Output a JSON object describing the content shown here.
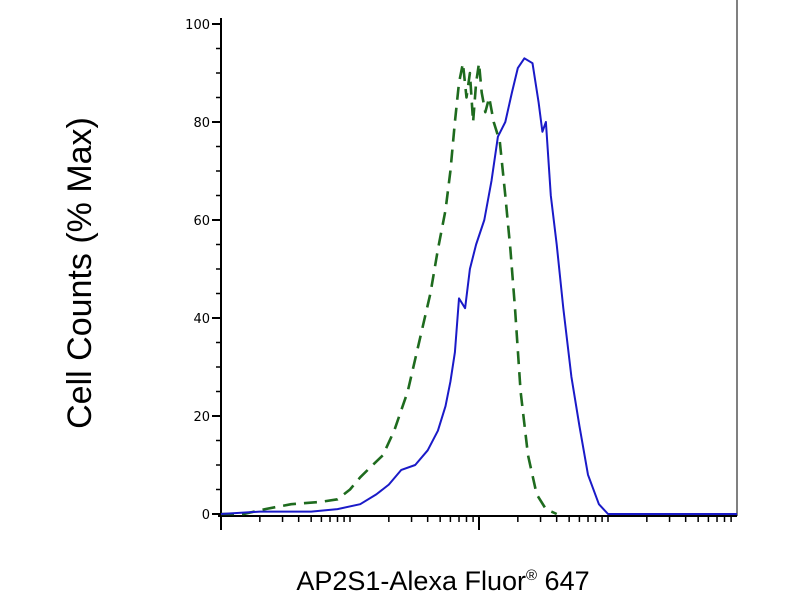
{
  "chart_data": {
    "type": "line",
    "title": "",
    "ylabel": "Cell Counts (% Max)",
    "xlabel": {
      "main": "AP2S1-Alexa Fluor",
      "superscript": "®",
      "suffix": " 647"
    },
    "xscale": "log",
    "xlim": [
      1,
      10000
    ],
    "ylim": [
      0,
      100
    ],
    "y_ticks": [
      0,
      20,
      40,
      60,
      80,
      100
    ],
    "y_tick_labels": [
      "0",
      "20",
      "40",
      "60",
      "80",
      "100"
    ],
    "x_major_ticks": [
      1,
      100,
      10000
    ],
    "grid": false,
    "legend": "none",
    "series": [
      {
        "style": "dashed",
        "color": "#1e6b1e",
        "x": [
          1,
          1.5,
          2.2,
          3.5,
          6,
          8,
          10,
          12,
          15,
          18,
          22,
          28,
          35,
          42,
          48,
          55,
          60,
          65,
          70,
          75,
          80,
          85,
          90,
          95,
          100,
          105,
          112,
          120,
          130,
          145,
          160,
          175,
          190,
          210,
          240,
          280,
          330,
          400
        ],
        "y": [
          0,
          0,
          1,
          2,
          2.5,
          3,
          5,
          7.5,
          10,
          12,
          17,
          25,
          36,
          45,
          54,
          62,
          70,
          80,
          88,
          92,
          85,
          90,
          80,
          88,
          92,
          86,
          82,
          85,
          80,
          76,
          65,
          54,
          42,
          25,
          12,
          4,
          1,
          0
        ]
      },
      {
        "style": "solid",
        "color": "#1a1ac8",
        "x": [
          1,
          2,
          3,
          5,
          8,
          12,
          16,
          20,
          25,
          32,
          40,
          48,
          55,
          60,
          65,
          70,
          78,
          85,
          95,
          110,
          125,
          140,
          160,
          180,
          200,
          225,
          260,
          290,
          310,
          330,
          360,
          400,
          450,
          520,
          600,
          700,
          850,
          1000,
          1200,
          1500,
          10000
        ],
        "y": [
          0,
          0.5,
          0.5,
          0.5,
          1,
          2,
          4,
          6,
          9,
          10,
          13,
          17,
          22,
          27,
          33,
          44,
          42,
          50,
          55,
          60,
          68,
          77,
          80,
          86,
          91,
          93,
          92,
          84,
          78,
          80,
          65,
          55,
          42,
          28,
          18,
          8,
          2,
          0,
          0,
          0,
          0
        ]
      }
    ]
  }
}
